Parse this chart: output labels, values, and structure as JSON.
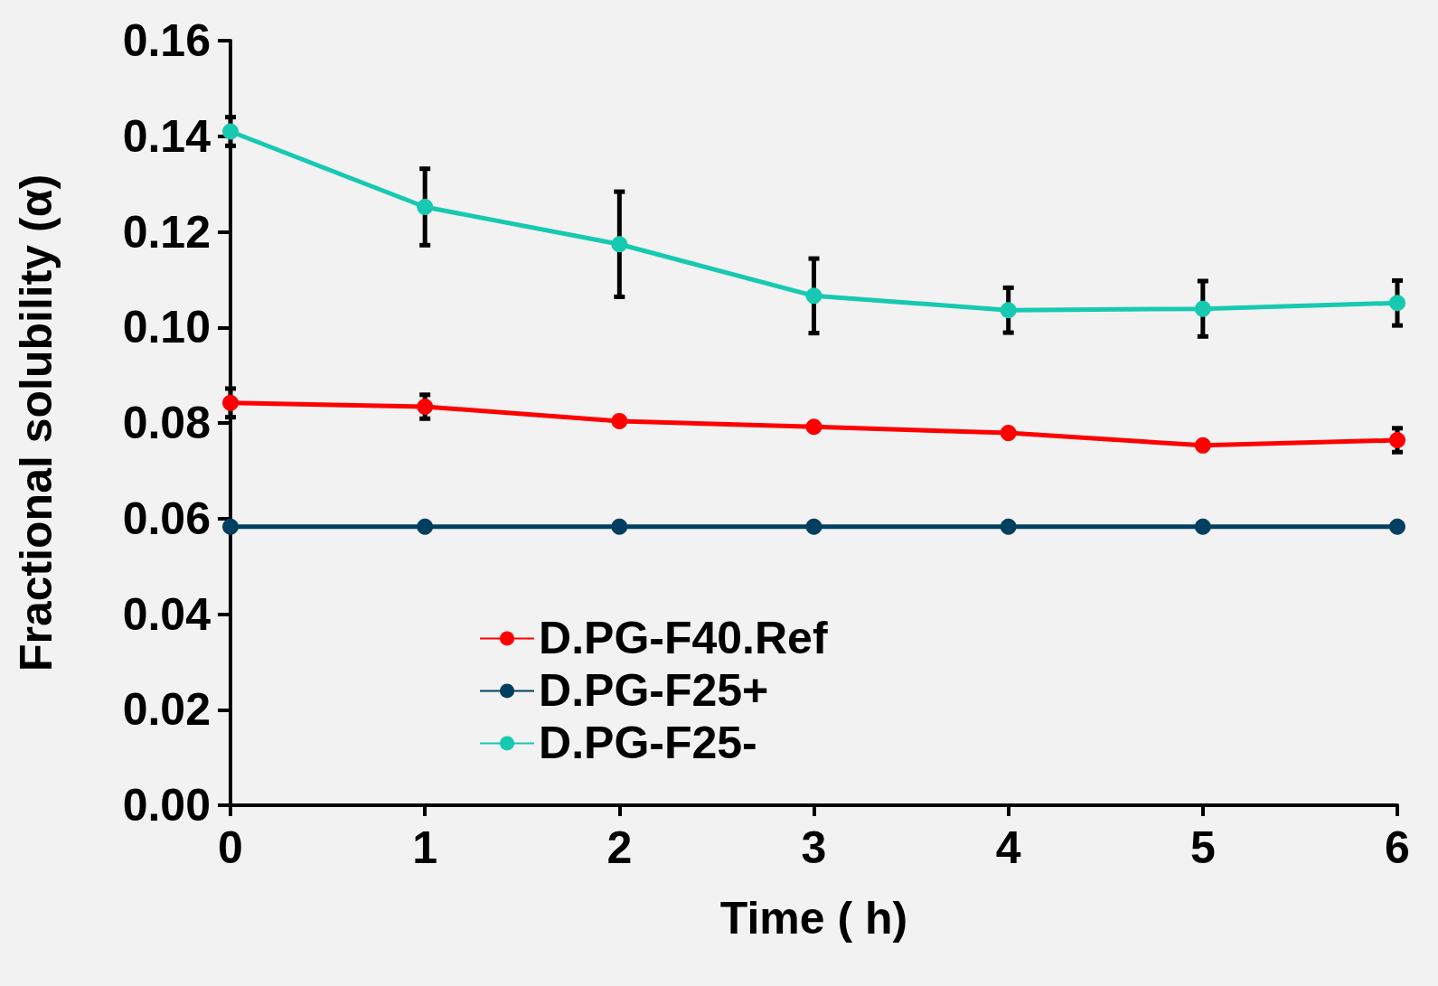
{
  "chart_data": {
    "type": "line",
    "xlabel": "Time ( h)",
    "ylabel": "Fractional solubility (α)",
    "x": [
      0,
      1,
      2,
      3,
      4,
      5,
      6
    ],
    "series": [
      {
        "name": "D.PG-F40.Ref",
        "color": "#ff0000",
        "values": [
          0.0842,
          0.0834,
          0.0804,
          0.0792,
          0.0779,
          0.0753,
          0.0764
        ],
        "errors": [
          0.003,
          0.0025,
          null,
          null,
          null,
          null,
          0.0025
        ]
      },
      {
        "name": "D.PG-F25+",
        "color": "#003f5f",
        "values": [
          0.0583,
          0.0583,
          0.0583,
          0.0583,
          0.0583,
          0.0583,
          0.0583
        ]
      },
      {
        "name": "D.PG-F25-",
        "color": "#17c9b0",
        "values": [
          0.141,
          0.1252,
          0.1174,
          0.1066,
          0.1036,
          0.1039,
          0.1051
        ],
        "errors": [
          0.003,
          0.008,
          0.011,
          0.0078,
          0.0047,
          0.0058,
          0.0047
        ]
      }
    ],
    "xlim": [
      0,
      6
    ],
    "xticks": [
      0,
      1,
      2,
      3,
      4,
      5,
      6
    ],
    "ylim": [
      0,
      0.16
    ],
    "yticks": [
      {
        "value": 0,
        "label": "0.00"
      },
      0.02,
      0.04,
      0.06,
      0.08,
      {
        "value": 0.1,
        "label": "0.10"
      },
      0.12,
      0.14,
      0.16
    ],
    "grid": false,
    "legend": "bottom",
    "marker": "circle",
    "line_style": "solid"
  }
}
